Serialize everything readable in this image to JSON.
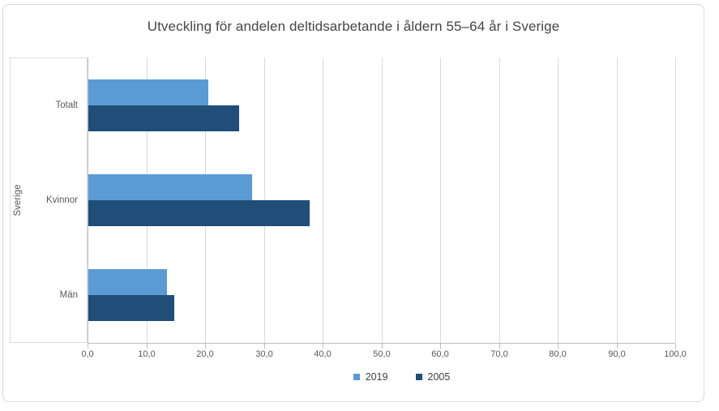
{
  "chart_data": {
    "type": "bar",
    "orientation": "horizontal",
    "title": "Utveckling för andelen deltidsarbetande i åldern 55–64 år i Sverige",
    "outer_category_label": "Sverige",
    "categories": [
      "Totalt",
      "Kvinnor",
      "Män"
    ],
    "series": [
      {
        "name": "2019",
        "color": "#5B9BD5",
        "values": [
          20.4,
          27.9,
          13.4
        ]
      },
      {
        "name": "2005",
        "color": "#1F4E79",
        "values": [
          25.7,
          37.6,
          14.6
        ]
      }
    ],
    "xlim": [
      0,
      100
    ],
    "x_tick_labels": [
      "0,0",
      "10,0",
      "20,0",
      "30,0",
      "40,0",
      "50,0",
      "60,0",
      "70,0",
      "80,0",
      "90,0",
      "100,0"
    ],
    "grid": true,
    "legend_position": "bottom",
    "colors": {
      "gridline": "#D9D9D9",
      "axis_line": "#BFBFBF",
      "axis_text": "#595959",
      "title_text": "#454545",
      "legend_text": "#404040",
      "chart_border": "#D9D9D9",
      "background": "#FFFFFF"
    }
  }
}
